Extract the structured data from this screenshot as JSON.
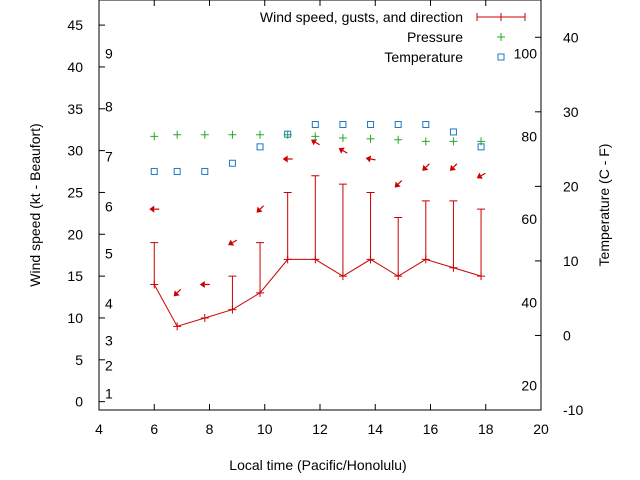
{
  "chart_data": {
    "type": "line",
    "xlabel": "Local time (Pacific/Honolulu)",
    "ylabel_left": "Wind speed (kt - Beaufort)",
    "ylabel_right": "Temperature (C - F)",
    "xlim": [
      4,
      20
    ],
    "ylim": [
      -1,
      48
    ],
    "ylim_right": [
      -10,
      45
    ],
    "x_ticks": [
      4,
      6,
      8,
      10,
      12,
      14,
      16,
      18,
      20
    ],
    "y_ticks": [
      0,
      5,
      10,
      15,
      20,
      25,
      30,
      35,
      40,
      45
    ],
    "y_right_ticks_c": [
      -10,
      0,
      10,
      20,
      30,
      40
    ],
    "y_right_ticks_f": [
      {
        "label": "20",
        "c": -6.7
      },
      {
        "label": "40",
        "c": 4.4
      },
      {
        "label": "60",
        "c": 15.6
      },
      {
        "label": "80",
        "c": 26.7
      },
      {
        "label": "100",
        "c": 37.8
      }
    ],
    "beaufort_ticks": [
      {
        "label": "1",
        "kt": 1
      },
      {
        "label": "2",
        "kt": 4.3
      },
      {
        "label": "3",
        "kt": 7.3
      },
      {
        "label": "4",
        "kt": 11.7
      },
      {
        "label": "5",
        "kt": 17.7
      },
      {
        "label": "6",
        "kt": 23.3
      },
      {
        "label": "7",
        "kt": 29.3
      },
      {
        "label": "8",
        "kt": 35.3
      },
      {
        "label": "9",
        "kt": 41.6
      }
    ],
    "legend": {
      "position": "top-right",
      "entries": [
        "Wind speed, gusts, and direction",
        "Pressure",
        "Temperature"
      ]
    },
    "colors": {
      "wind": "#cc0000",
      "pressure": "#22aa22",
      "temperature": "#1e78c8",
      "axis": "#000000"
    },
    "series": [
      {
        "name": "Wind speed, gusts, and direction",
        "x": [
          6,
          6.83,
          7.83,
          8.83,
          9.83,
          10.83,
          11.83,
          12.83,
          13.83,
          14.83,
          15.83,
          16.83,
          17.83
        ],
        "speed": [
          14,
          9,
          10,
          11,
          13,
          17,
          17,
          15,
          17,
          15,
          17,
          16,
          15
        ],
        "gust": [
          19,
          null,
          null,
          15,
          19,
          25,
          27,
          26,
          25,
          22,
          24,
          24,
          23
        ],
        "dir_deg": [
          90,
          45,
          90,
          60,
          45,
          90,
          120,
          120,
          100,
          45,
          45,
          45,
          60
        ],
        "arrow_y_kt": [
          23,
          13,
          14,
          19,
          23,
          29,
          31,
          30,
          29,
          26,
          28,
          28,
          27
        ]
      },
      {
        "name": "Pressure",
        "x": [
          6,
          6.83,
          7.83,
          8.83,
          9.83,
          10.83,
          11.83,
          12.83,
          13.83,
          14.83,
          15.83,
          16.83,
          17.83
        ],
        "y_kt": [
          31.7,
          31.9,
          31.9,
          31.9,
          31.9,
          31.9,
          31.7,
          31.5,
          31.4,
          31.3,
          31.1,
          31.1,
          31.1
        ]
      },
      {
        "name": "Temperature",
        "x": [
          6,
          6.83,
          7.83,
          8.83,
          9.83,
          10.83,
          11.83,
          12.83,
          13.83,
          14.83,
          15.83,
          16.83,
          17.83
        ],
        "y_c": [
          22,
          22,
          22,
          23.1,
          25.3,
          27,
          28.3,
          28.3,
          28.3,
          28.3,
          28.3,
          27.3,
          25.3
        ]
      }
    ]
  }
}
